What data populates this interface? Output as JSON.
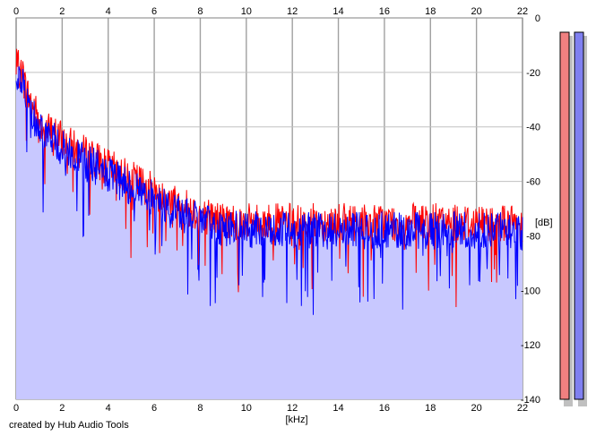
{
  "credit": "created by Hub Audio Tools",
  "chart_data": {
    "type": "line",
    "xlabel": "[kHz]",
    "ylabel": "[dB]",
    "xlim": [
      0,
      22
    ],
    "ylim": [
      -140,
      0
    ],
    "x_ticks": [
      0,
      2,
      4,
      6,
      8,
      10,
      12,
      14,
      16,
      18,
      20,
      22
    ],
    "y_ticks": [
      0,
      -20,
      -40,
      -60,
      -80,
      -100,
      -120,
      -140
    ],
    "grid": true,
    "fill_color": "#c8c8ff",
    "series": [
      {
        "color": "#ff0000",
        "points": [
          [
            0.0,
            -18
          ],
          [
            0.25,
            -20
          ],
          [
            0.5,
            -28
          ],
          [
            0.75,
            -33
          ],
          [
            1.0,
            -37
          ],
          [
            1.25,
            -40
          ],
          [
            1.5,
            -42
          ],
          [
            1.75,
            -43
          ],
          [
            2.0,
            -45
          ],
          [
            2.5,
            -48
          ],
          [
            3.0,
            -50
          ],
          [
            3.5,
            -52
          ],
          [
            4.0,
            -55
          ],
          [
            4.5,
            -57
          ],
          [
            5.0,
            -59
          ],
          [
            5.5,
            -61
          ],
          [
            6.0,
            -64
          ],
          [
            6.5,
            -66
          ],
          [
            7.0,
            -68
          ],
          [
            7.5,
            -70
          ],
          [
            8.0,
            -72
          ],
          [
            8.5,
            -73
          ],
          [
            9.0,
            -74
          ],
          [
            9.5,
            -74.5
          ],
          [
            10.0,
            -75
          ],
          [
            11.0,
            -75
          ],
          [
            12.0,
            -75
          ],
          [
            13.0,
            -75
          ],
          [
            14.0,
            -75
          ],
          [
            15.0,
            -75
          ],
          [
            16.0,
            -75
          ],
          [
            17.0,
            -75
          ],
          [
            18.0,
            -75
          ],
          [
            19.0,
            -75
          ],
          [
            20.0,
            -75
          ],
          [
            21.0,
            -75
          ],
          [
            22.0,
            -76
          ]
        ]
      },
      {
        "color": "#0000ff",
        "points": [
          [
            0.0,
            -20
          ],
          [
            0.25,
            -23
          ],
          [
            0.5,
            -31
          ],
          [
            0.75,
            -36
          ],
          [
            1.0,
            -40
          ],
          [
            1.25,
            -42
          ],
          [
            1.5,
            -44
          ],
          [
            1.75,
            -46
          ],
          [
            2.0,
            -48
          ],
          [
            2.5,
            -51
          ],
          [
            3.0,
            -53
          ],
          [
            3.5,
            -55
          ],
          [
            4.0,
            -58
          ],
          [
            4.5,
            -60
          ],
          [
            5.0,
            -62
          ],
          [
            5.5,
            -64
          ],
          [
            6.0,
            -67
          ],
          [
            6.5,
            -69
          ],
          [
            7.0,
            -71
          ],
          [
            7.5,
            -73
          ],
          [
            8.0,
            -75
          ],
          [
            8.5,
            -76
          ],
          [
            9.0,
            -77
          ],
          [
            9.5,
            -77.5
          ],
          [
            10.0,
            -78
          ],
          [
            11.0,
            -78
          ],
          [
            12.0,
            -78
          ],
          [
            13.0,
            -78
          ],
          [
            14.0,
            -78
          ],
          [
            15.0,
            -78
          ],
          [
            16.0,
            -78
          ],
          [
            17.0,
            -78
          ],
          [
            18.0,
            -78
          ],
          [
            19.0,
            -78
          ],
          [
            20.0,
            -78
          ],
          [
            21.0,
            -78
          ],
          [
            22.0,
            -79
          ]
        ]
      }
    ]
  },
  "meters": [
    {
      "channel": "left",
      "color": "#f08080",
      "level": 1.0
    },
    {
      "channel": "right",
      "color": "#8080f0",
      "level": 1.0
    }
  ]
}
